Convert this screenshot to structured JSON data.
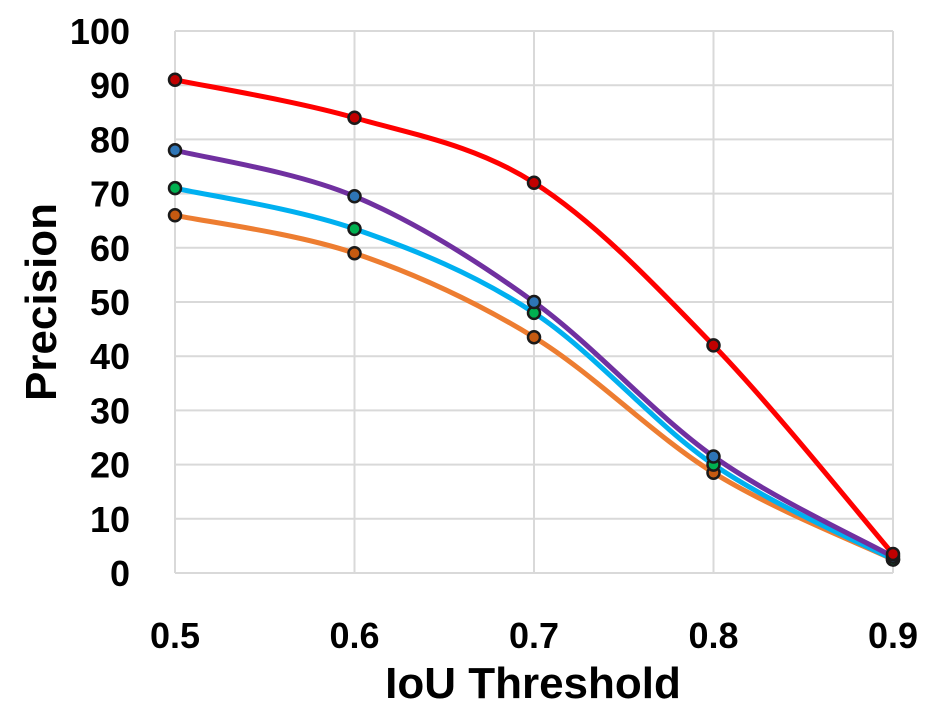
{
  "chart_data": {
    "type": "line",
    "title": "",
    "xlabel": "IoU Threshold",
    "ylabel": "Precision",
    "x": [
      0.5,
      0.6,
      0.7,
      0.8,
      0.9
    ],
    "x_tick_labels": [
      "0.5",
      "0.6",
      "0.7",
      "0.8",
      "0.9"
    ],
    "y_tick_labels": [
      "0",
      "10",
      "20",
      "30",
      "40",
      "50",
      "60",
      "70",
      "80",
      "90",
      "100"
    ],
    "xlim": [
      0.5,
      0.9
    ],
    "ylim": [
      0,
      100
    ],
    "grid": true,
    "legend": "none",
    "series": [
      {
        "name": "series-orange",
        "color": "#ED7D31",
        "marker_color": "#C55A11",
        "values": [
          66,
          59,
          43.5,
          18.5,
          2.5
        ]
      },
      {
        "name": "series-cyan",
        "color": "#00B0F0",
        "marker_color": "#00B050",
        "values": [
          71,
          63.5,
          48,
          20,
          2.5
        ]
      },
      {
        "name": "series-purple",
        "color": "#7030A0",
        "marker_color": "#2E75B6",
        "values": [
          78,
          69.5,
          50,
          21.5,
          3
        ]
      },
      {
        "name": "series-red",
        "color": "#FF0000",
        "marker_color": "#C00000",
        "values": [
          91,
          84,
          72,
          42,
          3.5
        ]
      }
    ]
  }
}
